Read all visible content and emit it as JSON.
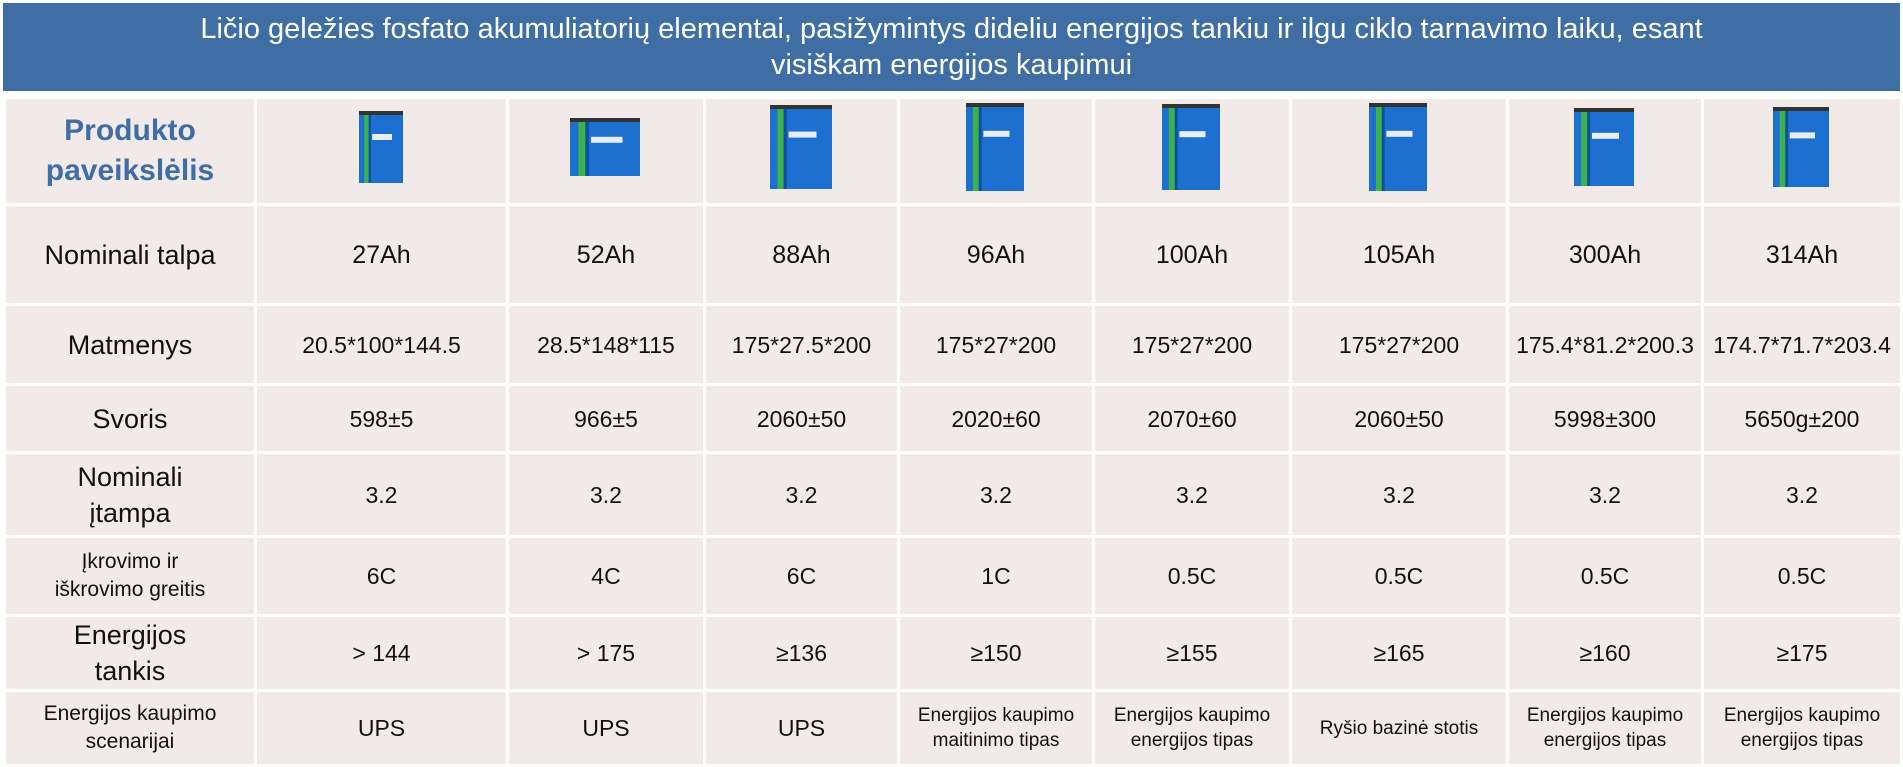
{
  "header": {
    "title": "Ličio geležies fosfato akumuliatorių elementai, pasižymintys dideliu energijos tankiu ir ilgu ciklo tarnavimo laiku, esant visiškam energijos kaupimui"
  },
  "table": {
    "image_label": "Produkto paveikslėlis",
    "rows": [
      {
        "label": "Nominali talpa",
        "values": [
          "27Ah",
          "52Ah",
          "88Ah",
          "96Ah",
          "100Ah",
          "105Ah",
          "300Ah",
          "314Ah"
        ]
      },
      {
        "label": "Matmenys",
        "values": [
          "20.5*100*144.5",
          "28.5*148*115",
          "175*27.5*200",
          "175*27*200",
          "175*27*200",
          "175*27*200",
          "175.4*81.2*200.3",
          "174.7*71.7*203.4"
        ]
      },
      {
        "label": "Svoris",
        "values": [
          "598±5",
          "966±5",
          "2060±50",
          "2020±60",
          "2070±60",
          "2060±50",
          "5998±300",
          "5650g±200"
        ]
      },
      {
        "label": "Nominali įtampa",
        "values": [
          "3.2",
          "3.2",
          "3.2",
          "3.2",
          "3.2",
          "3.2",
          "3.2",
          "3.2"
        ]
      },
      {
        "label": "Įkrovimo ir iškrovimo greitis",
        "values": [
          "6C",
          "4C",
          "6C",
          "1C",
          "0.5C",
          "0.5C",
          "0.5C",
          "0.5C"
        ]
      },
      {
        "label": "Energijos tankis",
        "values": [
          "> 144",
          "> 175",
          "≥136",
          "≥150",
          "≥155",
          "≥165",
          "≥160",
          "≥175"
        ]
      },
      {
        "label": "Energijos kaupimo scenarijai",
        "values": [
          "UPS",
          "UPS",
          "UPS",
          "Energijos kaupimo maitinimo tipas",
          "Energijos kaupimo energijos tipas",
          "Ryšio bazinė stotis",
          "Energijos kaupimo energijos tipas",
          "Energijos kaupimo energijos tipas"
        ]
      }
    ]
  }
}
